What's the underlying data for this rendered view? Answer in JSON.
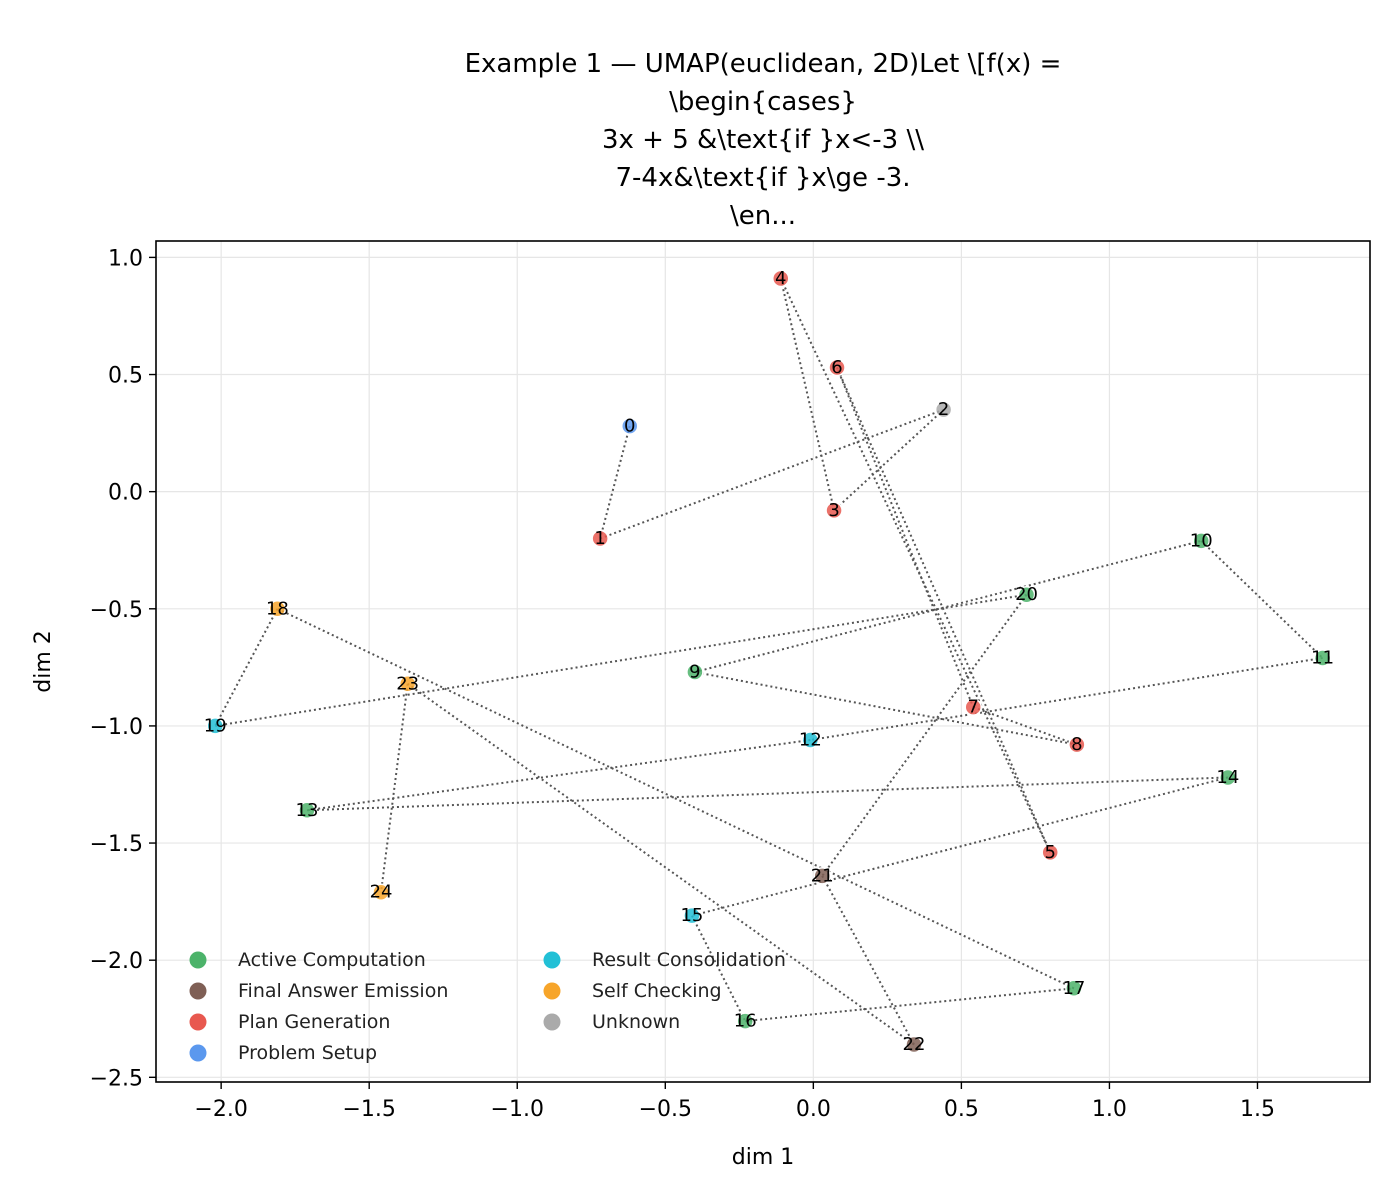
{
  "chart_data": {
    "type": "scatter",
    "title": "Example 1 — UMAP(euclidean, 2D)Let \\[f(x) =\n\\begin{cases}\n3x + 5 &\\text{if }x<-3 \\\\\n7-4x&\\text{if }x\\ge -3.\n\\en...",
    "title_lines": [
      "Example 1 — UMAP(euclidean, 2D)Let \\[f(x) =",
      "\\begin{cases}",
      "3x + 5 &\\text{if }x<-3 \\\\",
      "7-4x&\\text{if }x\\ge -3.",
      "\\en..."
    ],
    "xlabel": "dim 1",
    "ylabel": "dim 2",
    "xlim": [
      -2.22,
      1.88
    ],
    "ylim": [
      -2.52,
      1.07
    ],
    "xticks": [
      -2.0,
      -1.5,
      -1.0,
      -0.5,
      0.0,
      0.5,
      1.0,
      1.5
    ],
    "xtick_labels": [
      "−2.0",
      "−1.5",
      "−1.0",
      "−0.5",
      "0.0",
      "0.5",
      "1.0",
      "1.5"
    ],
    "yticks": [
      1.0,
      0.5,
      0.0,
      -0.5,
      -1.0,
      -1.5,
      -2.0,
      -2.5
    ],
    "ytick_labels": [
      "1.0",
      "0.5",
      "0.0",
      "−0.5",
      "−1.0",
      "−1.5",
      "−2.0",
      "−2.5"
    ],
    "grid": true,
    "legend_position": "lower-left",
    "categories": [
      {
        "name": "Active Computation",
        "color": "#4cb36a"
      },
      {
        "name": "Final Answer Emission",
        "color": "#7f5f55"
      },
      {
        "name": "Plan Generation",
        "color": "#e8584f"
      },
      {
        "name": "Problem Setup",
        "color": "#5b98ee"
      },
      {
        "name": "Result Consolidation",
        "color": "#22c0d6"
      },
      {
        "name": "Self Checking",
        "color": "#f7a52a"
      },
      {
        "name": "Unknown",
        "color": "#aaaaaa"
      }
    ],
    "points": [
      {
        "label": "0",
        "x": -0.62,
        "y": 0.28,
        "category": "Problem Setup"
      },
      {
        "label": "1",
        "x": -0.72,
        "y": -0.2,
        "category": "Plan Generation"
      },
      {
        "label": "2",
        "x": 0.44,
        "y": 0.35,
        "category": "Unknown"
      },
      {
        "label": "3",
        "x": 0.07,
        "y": -0.08,
        "category": "Plan Generation"
      },
      {
        "label": "4",
        "x": -0.11,
        "y": 0.91,
        "category": "Plan Generation"
      },
      {
        "label": "5",
        "x": 0.8,
        "y": -1.54,
        "category": "Plan Generation"
      },
      {
        "label": "6",
        "x": 0.08,
        "y": 0.53,
        "category": "Plan Generation"
      },
      {
        "label": "7",
        "x": 0.54,
        "y": -0.92,
        "category": "Plan Generation"
      },
      {
        "label": "8",
        "x": 0.89,
        "y": -1.08,
        "category": "Plan Generation"
      },
      {
        "label": "9",
        "x": -0.4,
        "y": -0.77,
        "category": "Active Computation"
      },
      {
        "label": "10",
        "x": 1.31,
        "y": -0.21,
        "category": "Active Computation"
      },
      {
        "label": "11",
        "x": 1.72,
        "y": -0.71,
        "category": "Active Computation"
      },
      {
        "label": "12",
        "x": -0.01,
        "y": -1.06,
        "category": "Result Consolidation"
      },
      {
        "label": "13",
        "x": -1.71,
        "y": -1.36,
        "category": "Active Computation"
      },
      {
        "label": "14",
        "x": 1.4,
        "y": -1.22,
        "category": "Active Computation"
      },
      {
        "label": "15",
        "x": -0.41,
        "y": -1.81,
        "category": "Result Consolidation"
      },
      {
        "label": "16",
        "x": -0.23,
        "y": -2.26,
        "category": "Active Computation"
      },
      {
        "label": "17",
        "x": 0.88,
        "y": -2.12,
        "category": "Active Computation"
      },
      {
        "label": "18",
        "x": -1.81,
        "y": -0.5,
        "category": "Self Checking"
      },
      {
        "label": "19",
        "x": -2.02,
        "y": -1.0,
        "category": "Result Consolidation"
      },
      {
        "label": "20",
        "x": 0.72,
        "y": -0.44,
        "category": "Active Computation"
      },
      {
        "label": "21",
        "x": 0.03,
        "y": -1.64,
        "category": "Final Answer Emission"
      },
      {
        "label": "22",
        "x": 0.34,
        "y": -2.36,
        "category": "Final Answer Emission"
      },
      {
        "label": "23",
        "x": -1.37,
        "y": -0.82,
        "category": "Self Checking"
      },
      {
        "label": "24",
        "x": -1.46,
        "y": -1.71,
        "category": "Self Checking"
      }
    ],
    "path_order": [
      "0",
      "1",
      "2",
      "3",
      "4",
      "5",
      "6",
      "7",
      "8",
      "9",
      "10",
      "11",
      "12",
      "13",
      "14",
      "15",
      "16",
      "17",
      "18",
      "19",
      "20",
      "21",
      "22",
      "23",
      "24"
    ]
  }
}
